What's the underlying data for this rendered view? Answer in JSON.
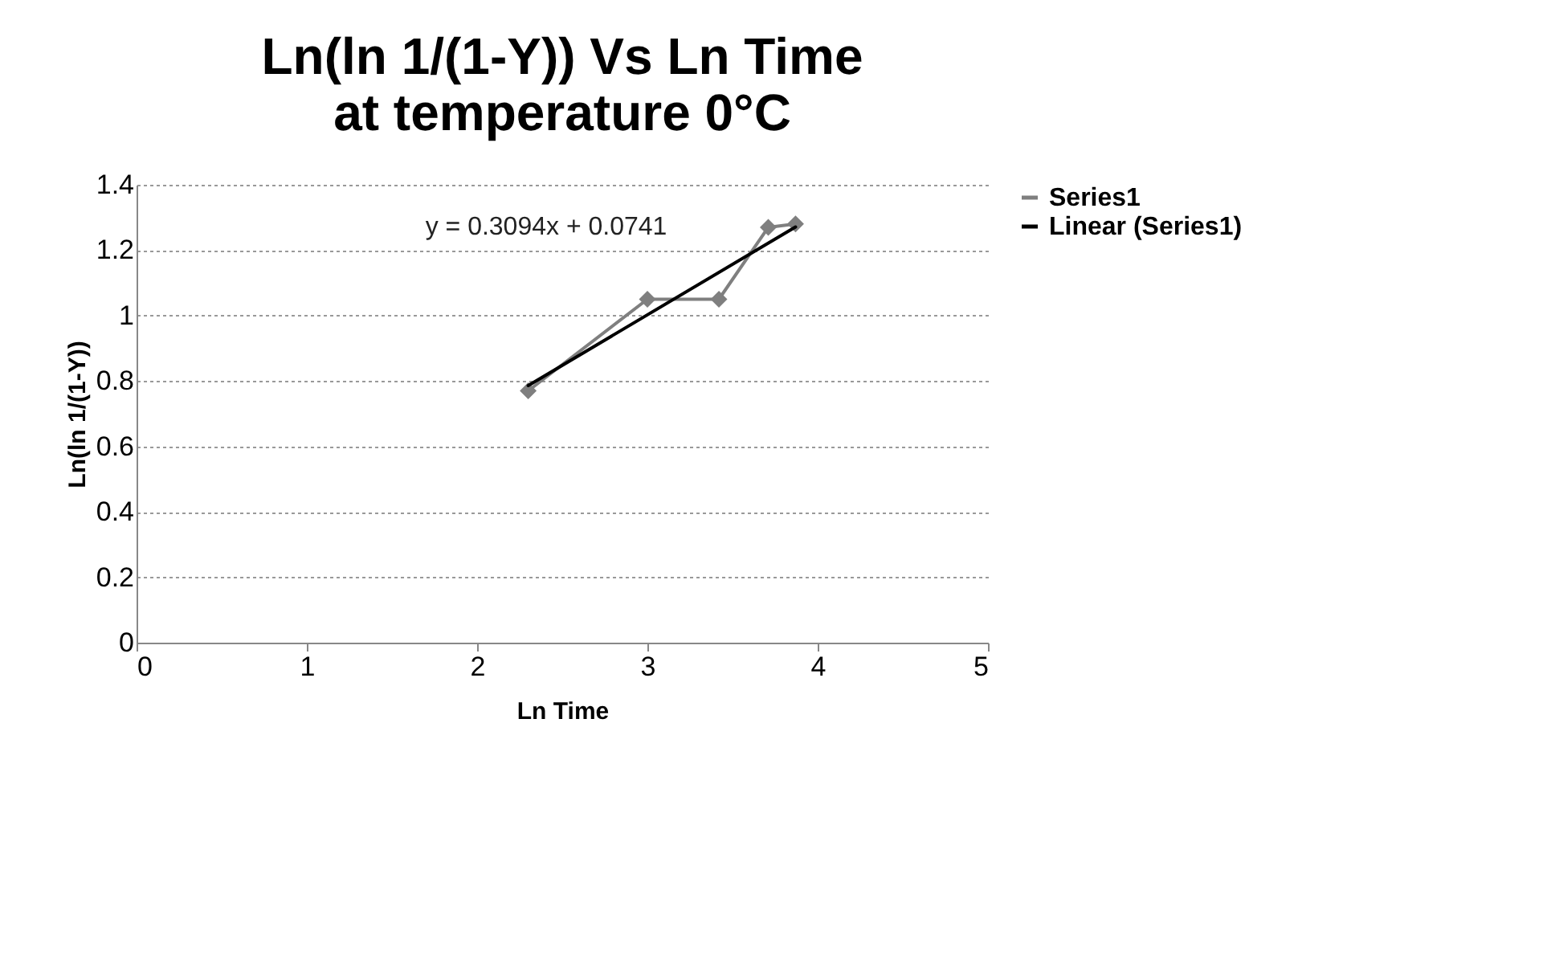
{
  "chart_data": {
    "type": "line",
    "title": "Ln(ln 1/(1-Y)) Vs Ln Time",
    "subtitle": "at temperature 0°C",
    "xlabel": "Ln Time",
    "ylabel": "Ln(ln 1/(1-Y))",
    "x": [
      2.3,
      3.0,
      3.42,
      3.71,
      3.87
    ],
    "series": [
      {
        "name": "Series1",
        "color": "#7f7f7f",
        "values": [
          0.77,
          1.05,
          1.05,
          1.27,
          1.28
        ],
        "marker": "diamond"
      },
      {
        "name": "Linear (Series1)",
        "color": "#000000",
        "type": "line",
        "x": [
          2.3,
          3.87
        ],
        "values": [
          0.786,
          1.271
        ],
        "marker": "none"
      }
    ],
    "annotations": [
      "y = 0.3094x + 0.0741"
    ],
    "xlim": [
      0,
      5
    ],
    "xticks": [
      0,
      1,
      2,
      3,
      4,
      5
    ],
    "ylim": [
      0,
      1.4
    ],
    "yticks": [
      0,
      0.2,
      0.4,
      0.6,
      0.8,
      1,
      1.2,
      1.4
    ],
    "grid": "y",
    "legend": "right"
  }
}
